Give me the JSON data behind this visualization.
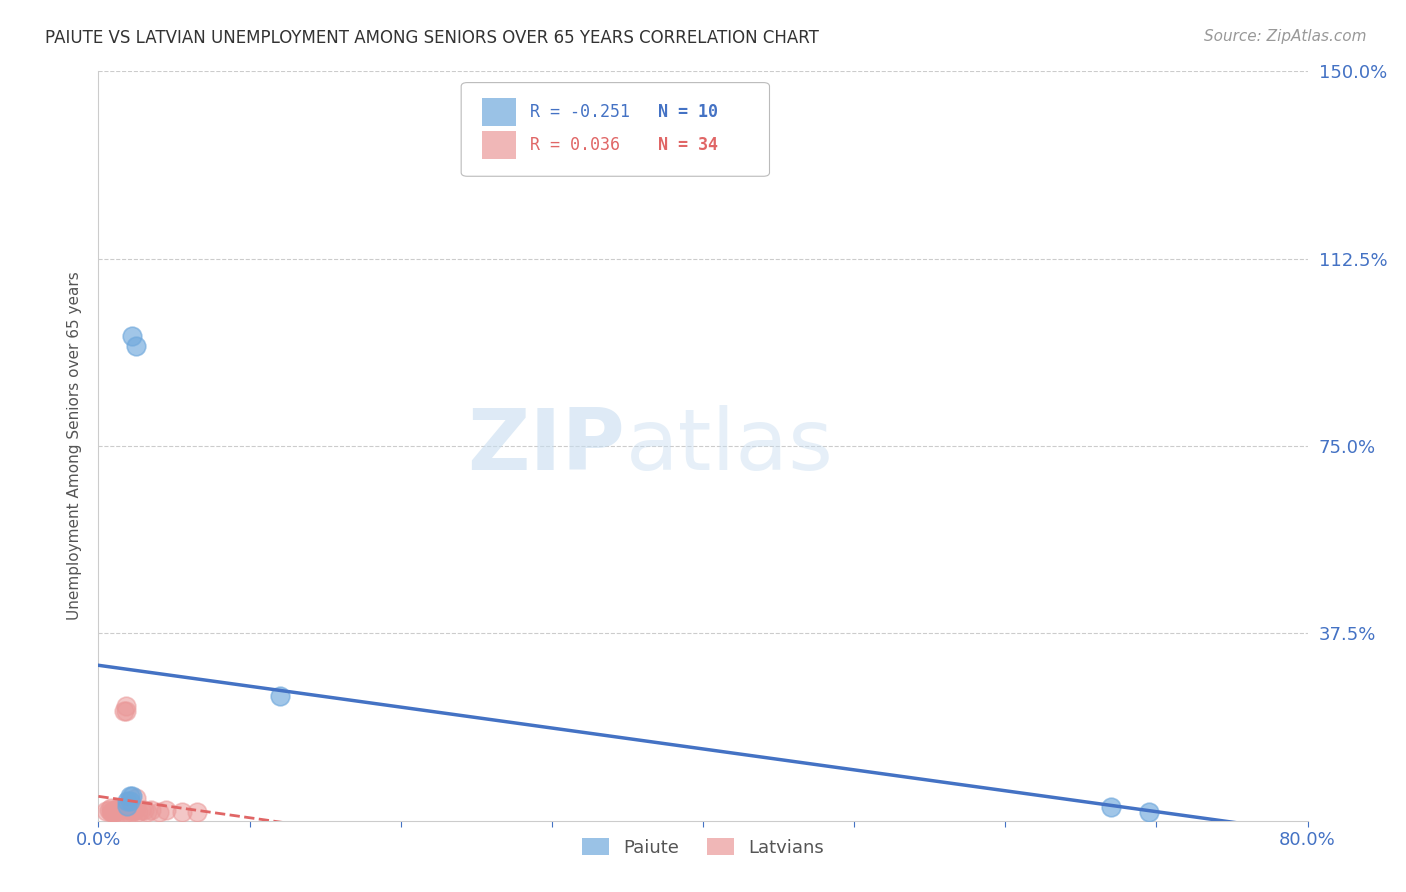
{
  "title": "PAIUTE VS LATVIAN UNEMPLOYMENT AMONG SENIORS OVER 65 YEARS CORRELATION CHART",
  "source": "Source: ZipAtlas.com",
  "ylabel": "Unemployment Among Seniors over 65 years",
  "xlim": [
    0.0,
    0.8
  ],
  "ylim": [
    0.0,
    1.5
  ],
  "xticks": [
    0.0,
    0.1,
    0.2,
    0.3,
    0.4,
    0.5,
    0.6,
    0.7,
    0.8
  ],
  "xticklabels": [
    "0.0%",
    "",
    "",
    "",
    "",
    "",
    "",
    "",
    "80.0%"
  ],
  "yticks": [
    0.0,
    0.375,
    0.75,
    1.125,
    1.5
  ],
  "yticklabels": [
    "",
    "37.5%",
    "75.0%",
    "112.5%",
    "150.0%"
  ],
  "paiute_x": [
    0.022,
    0.025,
    0.12,
    0.67,
    0.695,
    0.022,
    0.021,
    0.019,
    0.019,
    0.021
  ],
  "paiute_y": [
    0.97,
    0.95,
    0.25,
    0.028,
    0.018,
    0.05,
    0.04,
    0.04,
    0.03,
    0.05
  ],
  "latvian_x": [
    0.005,
    0.007,
    0.008,
    0.008,
    0.009,
    0.01,
    0.01,
    0.011,
    0.012,
    0.013,
    0.014,
    0.015,
    0.015,
    0.016,
    0.017,
    0.018,
    0.018,
    0.019,
    0.02,
    0.021,
    0.022,
    0.022,
    0.023,
    0.024,
    0.025,
    0.026,
    0.028,
    0.03,
    0.032,
    0.035,
    0.04,
    0.045,
    0.055,
    0.065
  ],
  "latvian_y": [
    0.02,
    0.022,
    0.018,
    0.025,
    0.018,
    0.022,
    0.018,
    0.018,
    0.022,
    0.025,
    0.022,
    0.018,
    0.022,
    0.025,
    0.22,
    0.22,
    0.23,
    0.018,
    0.022,
    0.025,
    0.018,
    0.022,
    0.022,
    0.022,
    0.045,
    0.018,
    0.022,
    0.022,
    0.018,
    0.022,
    0.018,
    0.022,
    0.018,
    0.018
  ],
  "paiute_color": "#6fa8dc",
  "latvian_color": "#ea9999",
  "paiute_line_color": "#4472c4",
  "latvian_line_color": "#e06666",
  "paiute_r": "R = -0.251",
  "paiute_n": "N = 10",
  "latvian_r": "R = 0.036",
  "latvian_n": "N = 34",
  "paiute_label": "Paiute",
  "latvian_label": "Latvians",
  "watermark_zip": "ZIP",
  "watermark_atlas": "atlas",
  "background_color": "#ffffff",
  "grid_color": "#cccccc",
  "axis_color": "#cccccc",
  "title_color": "#333333",
  "tick_color": "#4472c4",
  "source_color": "#999999"
}
